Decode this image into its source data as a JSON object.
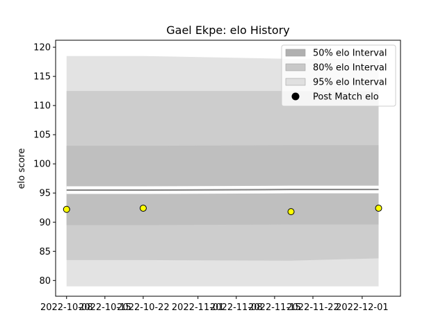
{
  "chart_data": {
    "type": "line",
    "title": "Gael Ekpe: elo History",
    "xlabel": "",
    "ylabel": "elo score",
    "xlim": [
      "2022-10-06",
      "2022-12-08"
    ],
    "ylim": [
      77.3,
      121.2
    ],
    "yticks": [
      80,
      85,
      90,
      95,
      100,
      105,
      110,
      115,
      120
    ],
    "xticks": [
      "2022-10-08",
      "2022-10-15",
      "2022-10-22",
      "2022-11-01",
      "2022-11-08",
      "2022-11-15",
      "2022-11-22",
      "2022-12-01"
    ],
    "grid": false,
    "legend_position": "top-right",
    "band_dates": [
      "2022-10-08",
      "2022-10-22",
      "2022-11-18",
      "2022-12-04"
    ],
    "mean": [
      95.5,
      95.5,
      95.6,
      95.6
    ],
    "intervals": [
      {
        "name": "95% elo Interval",
        "color": "#e3e3e3",
        "lower": [
          79.0,
          79.0,
          79.0,
          79.0
        ],
        "upper": [
          118.5,
          118.5,
          118.0,
          118.0
        ]
      },
      {
        "name": "80% elo Interval",
        "color": "#cdcdcd",
        "lower": [
          83.5,
          83.5,
          83.4,
          83.8
        ],
        "upper": [
          112.5,
          112.5,
          112.5,
          112.5
        ]
      },
      {
        "name": "50% elo Interval",
        "color": "#bfbfbf",
        "lower": [
          89.5,
          89.5,
          89.6,
          89.6
        ],
        "upper": [
          103.1,
          103.1,
          103.2,
          103.2
        ]
      }
    ],
    "series": [
      {
        "name": "Post Match elo",
        "color": "#ffff00",
        "x": [
          "2022-10-08",
          "2022-10-22",
          "2022-11-18",
          "2022-12-04"
        ],
        "y": [
          92.2,
          92.4,
          91.8,
          92.4
        ]
      }
    ],
    "legend": [
      {
        "label": "50% elo Interval",
        "kind": "patch",
        "color": "#b0b0b0"
      },
      {
        "label": "80% elo Interval",
        "kind": "patch",
        "color": "#c8c8c8"
      },
      {
        "label": "95% elo Interval",
        "kind": "patch",
        "color": "#e0e0e0"
      },
      {
        "label": "Post Match elo",
        "kind": "marker",
        "color": "#000000"
      }
    ]
  }
}
